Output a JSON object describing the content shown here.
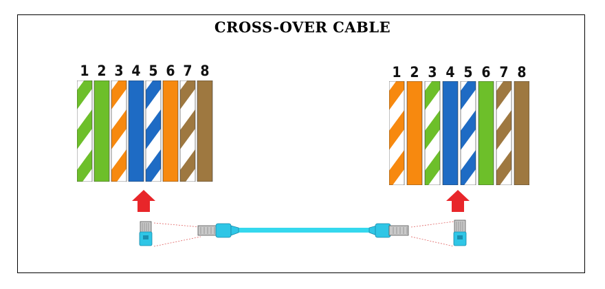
{
  "title": "CROSS-OVER CABLE",
  "colors": {
    "green": "#6dbf2a",
    "orange": "#f7890f",
    "blue": "#1e6bc4",
    "brown": "#9e7840",
    "white": "#ffffff",
    "arrow": "#e8262a",
    "cable": "#35d8ee",
    "plug_body": "#2fc6e6"
  },
  "connectors": [
    {
      "id": "left",
      "wires": [
        {
          "pin": "1",
          "color": "green",
          "striped": true
        },
        {
          "pin": "2",
          "color": "green",
          "striped": false
        },
        {
          "pin": "3",
          "color": "orange",
          "striped": true
        },
        {
          "pin": "4",
          "color": "blue",
          "striped": false
        },
        {
          "pin": "5",
          "color": "blue",
          "striped": true
        },
        {
          "pin": "6",
          "color": "orange",
          "striped": false
        },
        {
          "pin": "7",
          "color": "brown",
          "striped": true
        },
        {
          "pin": "8",
          "color": "brown",
          "striped": false
        }
      ]
    },
    {
      "id": "right",
      "wires": [
        {
          "pin": "1",
          "color": "orange",
          "striped": true
        },
        {
          "pin": "2",
          "color": "orange",
          "striped": false
        },
        {
          "pin": "3",
          "color": "green",
          "striped": true
        },
        {
          "pin": "4",
          "color": "blue",
          "striped": false
        },
        {
          "pin": "5",
          "color": "blue",
          "striped": true
        },
        {
          "pin": "6",
          "color": "green",
          "striped": false
        },
        {
          "pin": "7",
          "color": "brown",
          "striped": true
        },
        {
          "pin": "8",
          "color": "brown",
          "striped": false
        }
      ]
    }
  ]
}
